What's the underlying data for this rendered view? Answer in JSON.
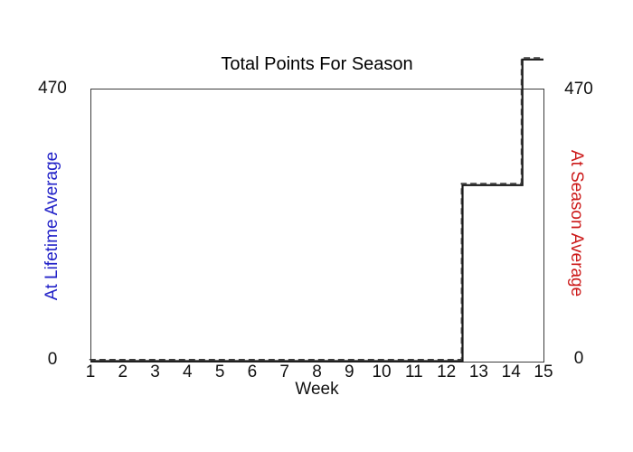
{
  "chart_title": "Total Points For Season",
  "left_axis": {
    "title": "At Lifetime Average",
    "color": "#2222c8",
    "tick_top": "470",
    "tick_bottom": "0"
  },
  "right_axis": {
    "title": "At Season Average",
    "color": "#cc1a1a",
    "tick_top": "470",
    "tick_bottom": "0"
  },
  "x_axis": {
    "title": "Week"
  },
  "chart_data": {
    "type": "line",
    "title": "Total Points For Season",
    "xlabel": "Week",
    "left_ylabel": "At Lifetime Average",
    "right_ylabel": "At Season Average",
    "x_ticks": [
      1,
      2,
      3,
      4,
      5,
      6,
      7,
      8,
      9,
      10,
      11,
      12,
      13,
      14,
      15
    ],
    "xlim": [
      1,
      15
    ],
    "ylim": [
      0,
      470
    ],
    "y_ticks": [
      0,
      470
    ],
    "grid": false,
    "legend": false,
    "line_color": "#1a1a1a",
    "series": [
      {
        "name": "At Lifetime Average",
        "axis": "left",
        "style": "solid",
        "color": "#1a1a1a",
        "points": [
          [
            1,
            0
          ],
          [
            12.5,
            0
          ],
          [
            12.5,
            304
          ],
          [
            14.35,
            304
          ],
          [
            14.35,
            521
          ],
          [
            15,
            521
          ]
        ]
      },
      {
        "name": "At Season Average",
        "axis": "right",
        "style": "dashed",
        "color": "#3a3a3a",
        "points": [
          [
            1,
            0
          ],
          [
            12.5,
            0
          ],
          [
            12.5,
            304
          ],
          [
            14.35,
            304
          ],
          [
            14.35,
            521
          ],
          [
            15,
            521
          ]
        ]
      }
    ],
    "note_values": {
      "weeks_1_to_12": 0,
      "weeks_13_14": 304,
      "week_15": 521
    }
  }
}
